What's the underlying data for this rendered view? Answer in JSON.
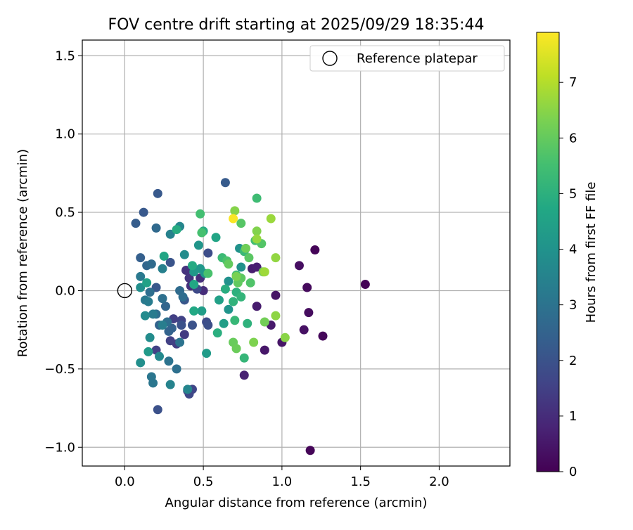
{
  "chart_data": {
    "type": "scatter",
    "title": "FOV centre drift starting at 2025/09/29 18:35:44",
    "xlabel": "Angular distance from reference (arcmin)",
    "ylabel": "Rotation from reference (arcmin)",
    "xlim": [
      -0.27,
      2.45
    ],
    "ylim": [
      -1.12,
      1.6
    ],
    "xticks": [
      0.0,
      0.5,
      1.0,
      1.5,
      2.0
    ],
    "xtick_labels": [
      "0.0",
      "0.5",
      "1.0",
      "1.5",
      "2.0"
    ],
    "yticks": [
      -1.0,
      -0.5,
      0.0,
      0.5,
      1.0,
      1.5
    ],
    "ytick_labels": [
      "−1.0",
      "−0.5",
      "0.0",
      "0.5",
      "1.0",
      "1.5"
    ],
    "grid": true,
    "legend": {
      "location": "top-right",
      "entries": [
        {
          "label": "Reference platepar",
          "marker": "open-circle"
        }
      ]
    },
    "reference_point": {
      "x": 0.0,
      "y": 0.0
    },
    "colorbar": {
      "label": "Hours from first FF file",
      "colormap": "viridis",
      "range": [
        0,
        7.9
      ],
      "ticks": [
        0,
        1,
        2,
        3,
        4,
        5,
        6,
        7
      ],
      "tick_labels": [
        "0",
        "1",
        "2",
        "3",
        "4",
        "5",
        "6",
        "7"
      ]
    },
    "points": [
      [
        1.53,
        0.04,
        0.05
      ],
      [
        1.18,
        -1.02,
        0.1
      ],
      [
        1.21,
        0.26,
        0.1
      ],
      [
        1.26,
        -0.29,
        0.15
      ],
      [
        1.16,
        0.02,
        0.2
      ],
      [
        1.17,
        -0.14,
        0.25
      ],
      [
        1.11,
        0.16,
        0.3
      ],
      [
        1.14,
        -0.25,
        0.35
      ],
      [
        0.96,
        -0.03,
        0.4
      ],
      [
        1.0,
        -0.33,
        0.45
      ],
      [
        0.89,
        -0.38,
        0.5
      ],
      [
        0.93,
        -0.22,
        0.55
      ],
      [
        0.84,
        -0.1,
        0.6
      ],
      [
        0.81,
        0.14,
        0.65
      ],
      [
        0.84,
        0.15,
        0.7
      ],
      [
        0.76,
        -0.54,
        0.75
      ],
      [
        0.5,
        0.0,
        1.0
      ],
      [
        0.48,
        0.08,
        1.05
      ],
      [
        0.42,
        0.03,
        1.1
      ],
      [
        0.39,
        0.13,
        1.15
      ],
      [
        0.41,
        0.08,
        1.2
      ],
      [
        0.36,
        -0.22,
        1.3
      ],
      [
        0.38,
        -0.28,
        1.35
      ],
      [
        0.33,
        -0.34,
        1.4
      ],
      [
        0.31,
        -0.18,
        1.45
      ],
      [
        0.29,
        -0.32,
        1.5
      ],
      [
        0.2,
        -0.38,
        1.5
      ],
      [
        0.36,
        -0.19,
        1.55
      ],
      [
        0.4,
        -0.64,
        1.6
      ],
      [
        0.43,
        -0.63,
        1.65
      ],
      [
        0.41,
        -0.66,
        1.7
      ],
      [
        0.46,
        0.01,
        1.75
      ],
      [
        0.52,
        -0.2,
        1.8
      ],
      [
        0.53,
        0.24,
        1.85
      ],
      [
        0.53,
        -0.22,
        1.9
      ],
      [
        0.21,
        -0.76,
        1.95
      ],
      [
        0.43,
        -0.22,
        2.0
      ],
      [
        0.36,
        -0.22,
        2.0
      ],
      [
        0.29,
        0.18,
        2.05
      ],
      [
        0.38,
        -0.06,
        2.1
      ],
      [
        0.2,
        0.02,
        2.15
      ],
      [
        0.12,
        0.5,
        2.2
      ],
      [
        0.21,
        0.62,
        2.2
      ],
      [
        0.07,
        0.43,
        2.3
      ],
      [
        0.64,
        0.69,
        2.25
      ],
      [
        0.1,
        0.21,
        2.4
      ],
      [
        0.3,
        -0.24,
        2.45
      ],
      [
        0.22,
        -0.22,
        2.5
      ],
      [
        0.28,
        -0.26,
        2.5
      ],
      [
        0.14,
        0.16,
        2.6
      ],
      [
        0.26,
        -0.1,
        2.6
      ],
      [
        0.2,
        0.4,
        2.7
      ],
      [
        0.17,
        0.17,
        2.75
      ],
      [
        0.35,
        0.0,
        2.75
      ],
      [
        0.37,
        -0.04,
        2.8
      ],
      [
        0.2,
        -0.15,
        2.8
      ],
      [
        0.16,
        -0.01,
        2.85
      ],
      [
        0.27,
        -0.2,
        2.85
      ],
      [
        0.24,
        -0.05,
        2.9
      ],
      [
        0.33,
        -0.5,
        2.9
      ],
      [
        0.28,
        -0.45,
        3.0
      ],
      [
        0.35,
        -0.33,
        3.0
      ],
      [
        0.18,
        -0.59,
        3.1
      ],
      [
        0.17,
        -0.55,
        3.1
      ],
      [
        0.1,
        0.09,
        3.2
      ],
      [
        0.13,
        -0.06,
        3.2
      ],
      [
        0.18,
        -0.15,
        3.25
      ],
      [
        0.15,
        -0.07,
        3.3
      ],
      [
        0.24,
        -0.22,
        3.35
      ],
      [
        0.24,
        0.14,
        3.4
      ],
      [
        0.29,
        0.36,
        3.45
      ],
      [
        0.29,
        -0.6,
        3.5
      ],
      [
        0.4,
        -0.63,
        3.6
      ],
      [
        0.35,
        0.41,
        3.6
      ],
      [
        0.22,
        -0.42,
        3.7
      ],
      [
        0.13,
        -0.16,
        3.75
      ],
      [
        0.16,
        -0.3,
        3.8
      ],
      [
        0.38,
        0.23,
        3.8
      ],
      [
        0.1,
        -0.46,
        3.9
      ],
      [
        0.1,
        0.02,
        3.9
      ],
      [
        0.66,
        0.06,
        3.95
      ],
      [
        0.73,
        0.27,
        4.0
      ],
      [
        0.74,
        0.15,
        4.0
      ],
      [
        0.66,
        -0.12,
        4.05
      ],
      [
        0.47,
        0.29,
        4.1
      ],
      [
        0.48,
        0.14,
        4.15
      ],
      [
        0.51,
        0.11,
        4.15
      ],
      [
        0.44,
        0.12,
        4.2
      ],
      [
        0.15,
        -0.39,
        4.25
      ],
      [
        0.52,
        -0.4,
        4.3
      ],
      [
        0.49,
        -0.13,
        4.35
      ],
      [
        0.63,
        -0.21,
        4.4
      ],
      [
        0.6,
        -0.06,
        4.45
      ],
      [
        0.14,
        0.05,
        4.5
      ],
      [
        0.58,
        0.34,
        4.6
      ],
      [
        0.25,
        0.22,
        4.65
      ],
      [
        0.44,
        0.04,
        4.7
      ],
      [
        0.44,
        -0.13,
        4.75
      ],
      [
        0.43,
        0.16,
        4.8
      ],
      [
        0.33,
        0.39,
        4.85
      ],
      [
        0.5,
        0.38,
        4.85
      ],
      [
        0.64,
        0.01,
        4.9
      ],
      [
        0.59,
        -0.27,
        4.95
      ],
      [
        0.71,
        -0.01,
        5.0
      ],
      [
        0.78,
        -0.21,
        5.05
      ],
      [
        0.69,
        -0.07,
        5.1
      ],
      [
        0.74,
        -0.04,
        5.15
      ],
      [
        0.76,
        -0.43,
        5.2
      ],
      [
        0.7,
        -0.19,
        5.25
      ],
      [
        0.76,
        0.25,
        5.3
      ],
      [
        0.62,
        0.21,
        5.35
      ],
      [
        0.84,
        0.59,
        5.4
      ],
      [
        0.71,
        0.1,
        5.45
      ],
      [
        0.83,
        0.32,
        5.5
      ],
      [
        0.48,
        0.49,
        5.5
      ],
      [
        0.49,
        0.37,
        5.55
      ],
      [
        0.53,
        0.11,
        5.6
      ],
      [
        0.65,
        0.19,
        5.65
      ],
      [
        0.8,
        0.05,
        5.7
      ],
      [
        0.87,
        0.3,
        5.75
      ],
      [
        0.74,
        0.43,
        5.8
      ],
      [
        0.79,
        0.21,
        5.85
      ],
      [
        0.74,
        0.08,
        5.9
      ],
      [
        0.72,
        0.05,
        5.95
      ],
      [
        0.66,
        0.17,
        6.0
      ],
      [
        0.69,
        -0.33,
        6.05
      ],
      [
        0.71,
        -0.37,
        6.1
      ],
      [
        0.77,
        0.27,
        6.15
      ],
      [
        0.89,
        -0.2,
        6.2
      ],
      [
        0.88,
        0.12,
        6.25
      ],
      [
        0.71,
        0.09,
        6.3
      ],
      [
        0.82,
        -0.33,
        6.35
      ],
      [
        0.84,
        0.38,
        6.4
      ],
      [
        0.7,
        0.51,
        6.45
      ],
      [
        1.02,
        -0.3,
        6.5
      ],
      [
        0.96,
        -0.16,
        6.55
      ],
      [
        0.96,
        0.21,
        6.6
      ],
      [
        0.84,
        0.33,
        6.65
      ],
      [
        0.93,
        0.46,
        6.7
      ],
      [
        0.89,
        0.12,
        6.75
      ],
      [
        0.69,
        0.46,
        7.85
      ]
    ]
  }
}
